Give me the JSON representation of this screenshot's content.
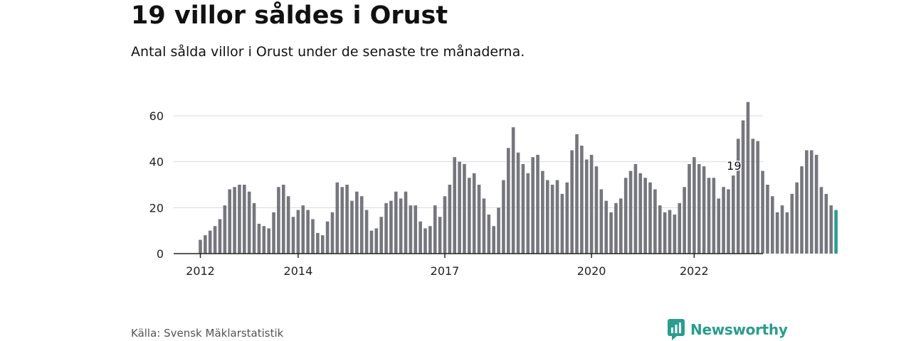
{
  "header": {
    "title": "19 villor såldes i Orust",
    "subtitle": "Antal sålda villor i Orust under de senaste tre månaderna."
  },
  "footer": {
    "source": "Källa: Svensk Mäklarstatistik",
    "brand": "Newsworthy"
  },
  "colors": {
    "bar": "#76767e",
    "highlight": "#2a9d8f",
    "grid": "#d9d9d9",
    "axis": "#222222",
    "brand": "#2a9d8f"
  },
  "chart_data": {
    "type": "bar",
    "title": "19 villor såldes i Orust",
    "subtitle": "Antal sålda villor i Orust under de senaste tre månaderna.",
    "xlabel": "",
    "ylabel": "",
    "ylim": [
      0,
      70
    ],
    "yticks": [
      0,
      20,
      40,
      60
    ],
    "grid": true,
    "x_ticks": [
      {
        "label": "2012",
        "index": 0
      },
      {
        "label": "2014",
        "index": 20
      },
      {
        "label": "2017",
        "index": 50
      },
      {
        "label": "2020",
        "index": 80
      },
      {
        "label": "2022",
        "index": 101
      }
    ],
    "values": [
      6,
      8,
      10,
      12,
      15,
      21,
      28,
      29,
      30,
      30,
      27,
      22,
      13,
      12,
      11,
      18,
      29,
      30,
      25,
      16,
      19,
      21,
      19,
      15,
      9,
      8,
      14,
      18,
      31,
      29,
      30,
      23,
      27,
      25,
      19,
      10,
      11,
      16,
      22,
      23,
      27,
      24,
      27,
      21,
      21,
      14,
      11,
      12,
      21,
      16,
      25,
      30,
      42,
      40,
      39,
      33,
      35,
      30,
      24,
      17,
      12,
      20,
      32,
      46,
      55,
      44,
      39,
      35,
      42,
      43,
      36,
      32,
      30,
      32,
      26,
      31,
      45,
      52,
      47,
      41,
      43,
      38,
      28,
      23,
      18,
      22,
      24,
      33,
      36,
      39,
      35,
      33,
      31,
      28,
      21,
      18,
      19,
      17,
      22,
      29,
      39,
      42,
      39,
      38,
      33,
      33,
      24,
      29,
      28,
      34,
      50,
      58,
      66,
      50,
      49,
      36,
      30,
      25,
      18,
      21,
      18,
      26,
      31,
      38,
      45,
      45,
      43,
      29,
      26,
      21,
      19
    ],
    "highlight_last": true,
    "annotation": {
      "text": "19",
      "index": 109
    }
  }
}
